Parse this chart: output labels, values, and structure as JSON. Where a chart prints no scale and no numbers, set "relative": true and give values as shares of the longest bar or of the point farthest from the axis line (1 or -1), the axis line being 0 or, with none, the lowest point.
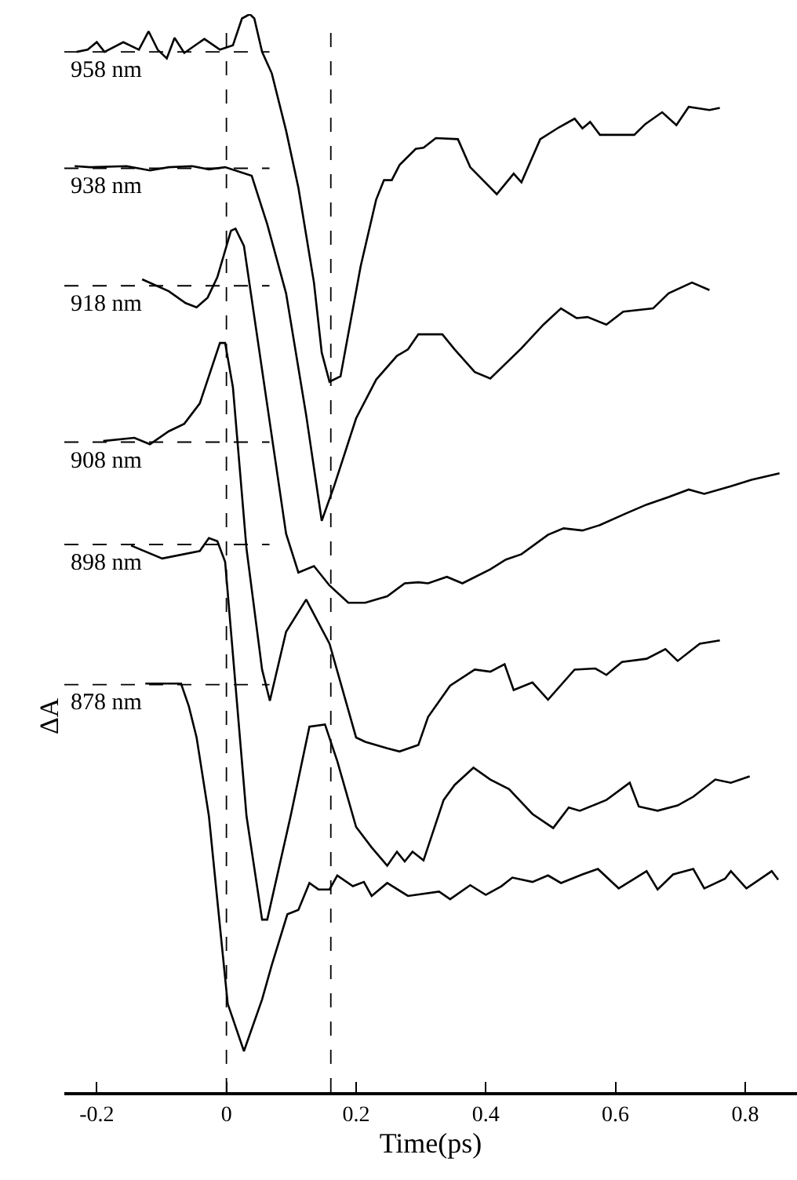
{
  "chart_data": {
    "type": "line",
    "relative": true,
    "xlabel": "Time(ps)",
    "ylabel": "ΔA",
    "xlim": [
      -0.25,
      0.88
    ],
    "xticks": [
      -0.2,
      0,
      0.2,
      0.4,
      0.6,
      0.8
    ],
    "marker": "none",
    "line_style": "solid",
    "series": [
      {
        "color": "#000000",
        "x": [
          -0.231,
          -0.214,
          -0.2,
          -0.188,
          -0.159,
          -0.135,
          -0.12,
          -0.106,
          -0.092,
          -0.08,
          -0.065,
          -0.034,
          -0.01,
          0.01,
          0.024,
          0.036,
          0.043,
          0.055,
          0.07,
          0.092,
          0.111,
          0.135,
          0.147,
          0.159,
          0.176,
          0.207,
          0.231,
          0.243,
          0.255,
          0.267,
          0.292,
          0.304,
          0.323,
          0.357,
          0.376,
          0.417,
          0.443,
          0.455,
          0.484,
          0.513,
          0.537,
          0.549,
          0.561,
          0.576,
          0.629,
          0.646,
          0.672,
          0.694,
          0.713,
          0.745,
          0.761
        ],
        "values": [
          0.965,
          0.967,
          0.974,
          0.965,
          0.974,
          0.967,
          0.984,
          0.967,
          0.959,
          0.978,
          0.964,
          0.977,
          0.967,
          0.971,
          0.996,
          1.0,
          0.996,
          0.965,
          0.945,
          0.892,
          0.839,
          0.751,
          0.686,
          0.659,
          0.664,
          0.766,
          0.828,
          0.846,
          0.846,
          0.86,
          0.875,
          0.876,
          0.885,
          0.884,
          0.858,
          0.833,
          0.852,
          0.844,
          0.884,
          0.895,
          0.903,
          0.894,
          0.9,
          0.888,
          0.888,
          0.898,
          0.909,
          0.897,
          0.914,
          0.911,
          0.913
        ]
      },
      {
        "color": "#000000",
        "x": [
          -0.234,
          -0.21,
          -0.154,
          -0.118,
          -0.089,
          -0.053,
          -0.027,
          -0.002,
          0.039,
          0.063,
          0.092,
          0.123,
          0.147,
          0.166,
          0.2,
          0.231,
          0.263,
          0.28,
          0.296,
          0.333,
          0.352,
          0.383,
          0.407,
          0.455,
          0.489,
          0.516,
          0.54,
          0.557,
          0.586,
          0.612,
          0.658,
          0.682,
          0.718,
          0.745
        ],
        "values": [
          0.859,
          0.858,
          0.859,
          0.855,
          0.858,
          0.859,
          0.856,
          0.858,
          0.85,
          0.805,
          0.741,
          0.628,
          0.53,
          0.562,
          0.625,
          0.661,
          0.683,
          0.689,
          0.703,
          0.703,
          0.689,
          0.668,
          0.662,
          0.69,
          0.712,
          0.727,
          0.718,
          0.719,
          0.712,
          0.724,
          0.727,
          0.741,
          0.751,
          0.744
        ]
      },
      {
        "color": "#000000",
        "x": [
          -0.13,
          -0.089,
          -0.063,
          -0.046,
          -0.029,
          -0.014,
          0.007,
          0.014,
          0.027,
          0.092,
          0.111,
          0.135,
          0.159,
          0.188,
          0.214,
          0.248,
          0.275,
          0.296,
          0.311,
          0.34,
          0.364,
          0.407,
          0.431,
          0.455,
          0.496,
          0.52,
          0.549,
          0.576,
          0.617,
          0.648,
          0.682,
          0.713,
          0.737,
          0.778,
          0.81,
          0.853
        ],
        "values": [
          0.754,
          0.743,
          0.732,
          0.728,
          0.737,
          0.756,
          0.799,
          0.801,
          0.785,
          0.518,
          0.482,
          0.488,
          0.47,
          0.454,
          0.454,
          0.46,
          0.472,
          0.473,
          0.472,
          0.478,
          0.472,
          0.485,
          0.494,
          0.499,
          0.517,
          0.523,
          0.521,
          0.526,
          0.537,
          0.545,
          0.552,
          0.559,
          0.555,
          0.562,
          0.568,
          0.574
        ]
      },
      {
        "color": "#000000",
        "x": [
          -0.19,
          -0.142,
          -0.118,
          -0.089,
          -0.065,
          -0.041,
          -0.01,
          -0.002,
          0.01,
          0.031,
          0.055,
          0.067,
          0.092,
          0.123,
          0.159,
          0.2,
          0.214,
          0.248,
          0.267,
          0.296,
          0.311,
          0.345,
          0.383,
          0.407,
          0.429,
          0.443,
          0.472,
          0.496,
          0.537,
          0.569,
          0.586,
          0.61,
          0.648,
          0.677,
          0.696,
          0.73,
          0.761
        ],
        "values": [
          0.604,
          0.607,
          0.601,
          0.613,
          0.62,
          0.639,
          0.695,
          0.695,
          0.654,
          0.504,
          0.392,
          0.363,
          0.427,
          0.457,
          0.416,
          0.329,
          0.325,
          0.319,
          0.316,
          0.322,
          0.348,
          0.377,
          0.392,
          0.39,
          0.397,
          0.373,
          0.38,
          0.364,
          0.392,
          0.393,
          0.387,
          0.399,
          0.402,
          0.411,
          0.4,
          0.416,
          0.419
        ]
      },
      {
        "color": "#000000",
        "x": [
          -0.147,
          -0.099,
          -0.041,
          -0.027,
          -0.014,
          -0.002,
          0.031,
          0.055,
          0.063,
          0.099,
          0.128,
          0.152,
          0.171,
          0.2,
          0.224,
          0.248,
          0.263,
          0.275,
          0.287,
          0.304,
          0.335,
          0.352,
          0.381,
          0.407,
          0.436,
          0.472,
          0.504,
          0.528,
          0.545,
          0.586,
          0.622,
          0.636,
          0.665,
          0.696,
          0.72,
          0.754,
          0.778,
          0.807
        ],
        "values": [
          0.507,
          0.495,
          0.502,
          0.514,
          0.511,
          0.492,
          0.256,
          0.16,
          0.16,
          0.256,
          0.339,
          0.341,
          0.307,
          0.246,
          0.227,
          0.21,
          0.223,
          0.214,
          0.223,
          0.215,
          0.271,
          0.285,
          0.301,
          0.29,
          0.281,
          0.258,
          0.245,
          0.264,
          0.261,
          0.271,
          0.287,
          0.265,
          0.261,
          0.266,
          0.274,
          0.29,
          0.287,
          0.293
        ]
      },
      {
        "color": "#000000",
        "x": [
          -0.125,
          -0.07,
          -0.058,
          -0.046,
          -0.027,
          -0.002,
          0.002,
          0.027,
          0.055,
          0.07,
          0.094,
          0.111,
          0.128,
          0.142,
          0.159,
          0.171,
          0.195,
          0.212,
          0.224,
          0.248,
          0.28,
          0.328,
          0.345,
          0.376,
          0.4,
          0.424,
          0.441,
          0.472,
          0.496,
          0.516,
          0.549,
          0.573,
          0.605,
          0.648,
          0.665,
          0.689,
          0.72,
          0.737,
          0.769,
          0.778,
          0.802,
          0.841,
          0.851
        ],
        "values": [
          0.379,
          0.379,
          0.358,
          0.329,
          0.256,
          0.106,
          0.082,
          0.038,
          0.086,
          0.118,
          0.165,
          0.169,
          0.194,
          0.188,
          0.188,
          0.201,
          0.191,
          0.195,
          0.182,
          0.194,
          0.182,
          0.186,
          0.179,
          0.192,
          0.183,
          0.191,
          0.199,
          0.195,
          0.201,
          0.194,
          0.202,
          0.207,
          0.189,
          0.205,
          0.188,
          0.202,
          0.207,
          0.189,
          0.198,
          0.205,
          0.189,
          0.205,
          0.197
        ]
      }
    ],
    "ref_lines": [
      {
        "axis": "y",
        "value": 0.965,
        "label": "958 nm",
        "line_style": "dashed",
        "color": "#000000"
      },
      {
        "axis": "y",
        "value": 0.857,
        "label": "938 nm",
        "line_style": "dashed",
        "color": "#000000"
      },
      {
        "axis": "y",
        "value": 0.748,
        "label": "918 nm",
        "line_style": "dashed",
        "color": "#000000"
      },
      {
        "axis": "y",
        "value": 0.603,
        "label": "908 nm",
        "line_style": "dashed",
        "color": "#000000"
      },
      {
        "axis": "y",
        "value": 0.508,
        "label": "898 nm",
        "line_style": "dashed",
        "color": "#000000"
      },
      {
        "axis": "y",
        "value": 0.378,
        "label": "878 nm",
        "line_style": "dashed",
        "color": "#000000"
      },
      {
        "axis": "x",
        "value": 0,
        "line_style": "dashed",
        "color": "#000000"
      },
      {
        "axis": "x",
        "value": 0.161,
        "line_style": "dashed",
        "color": "#000000"
      }
    ]
  }
}
